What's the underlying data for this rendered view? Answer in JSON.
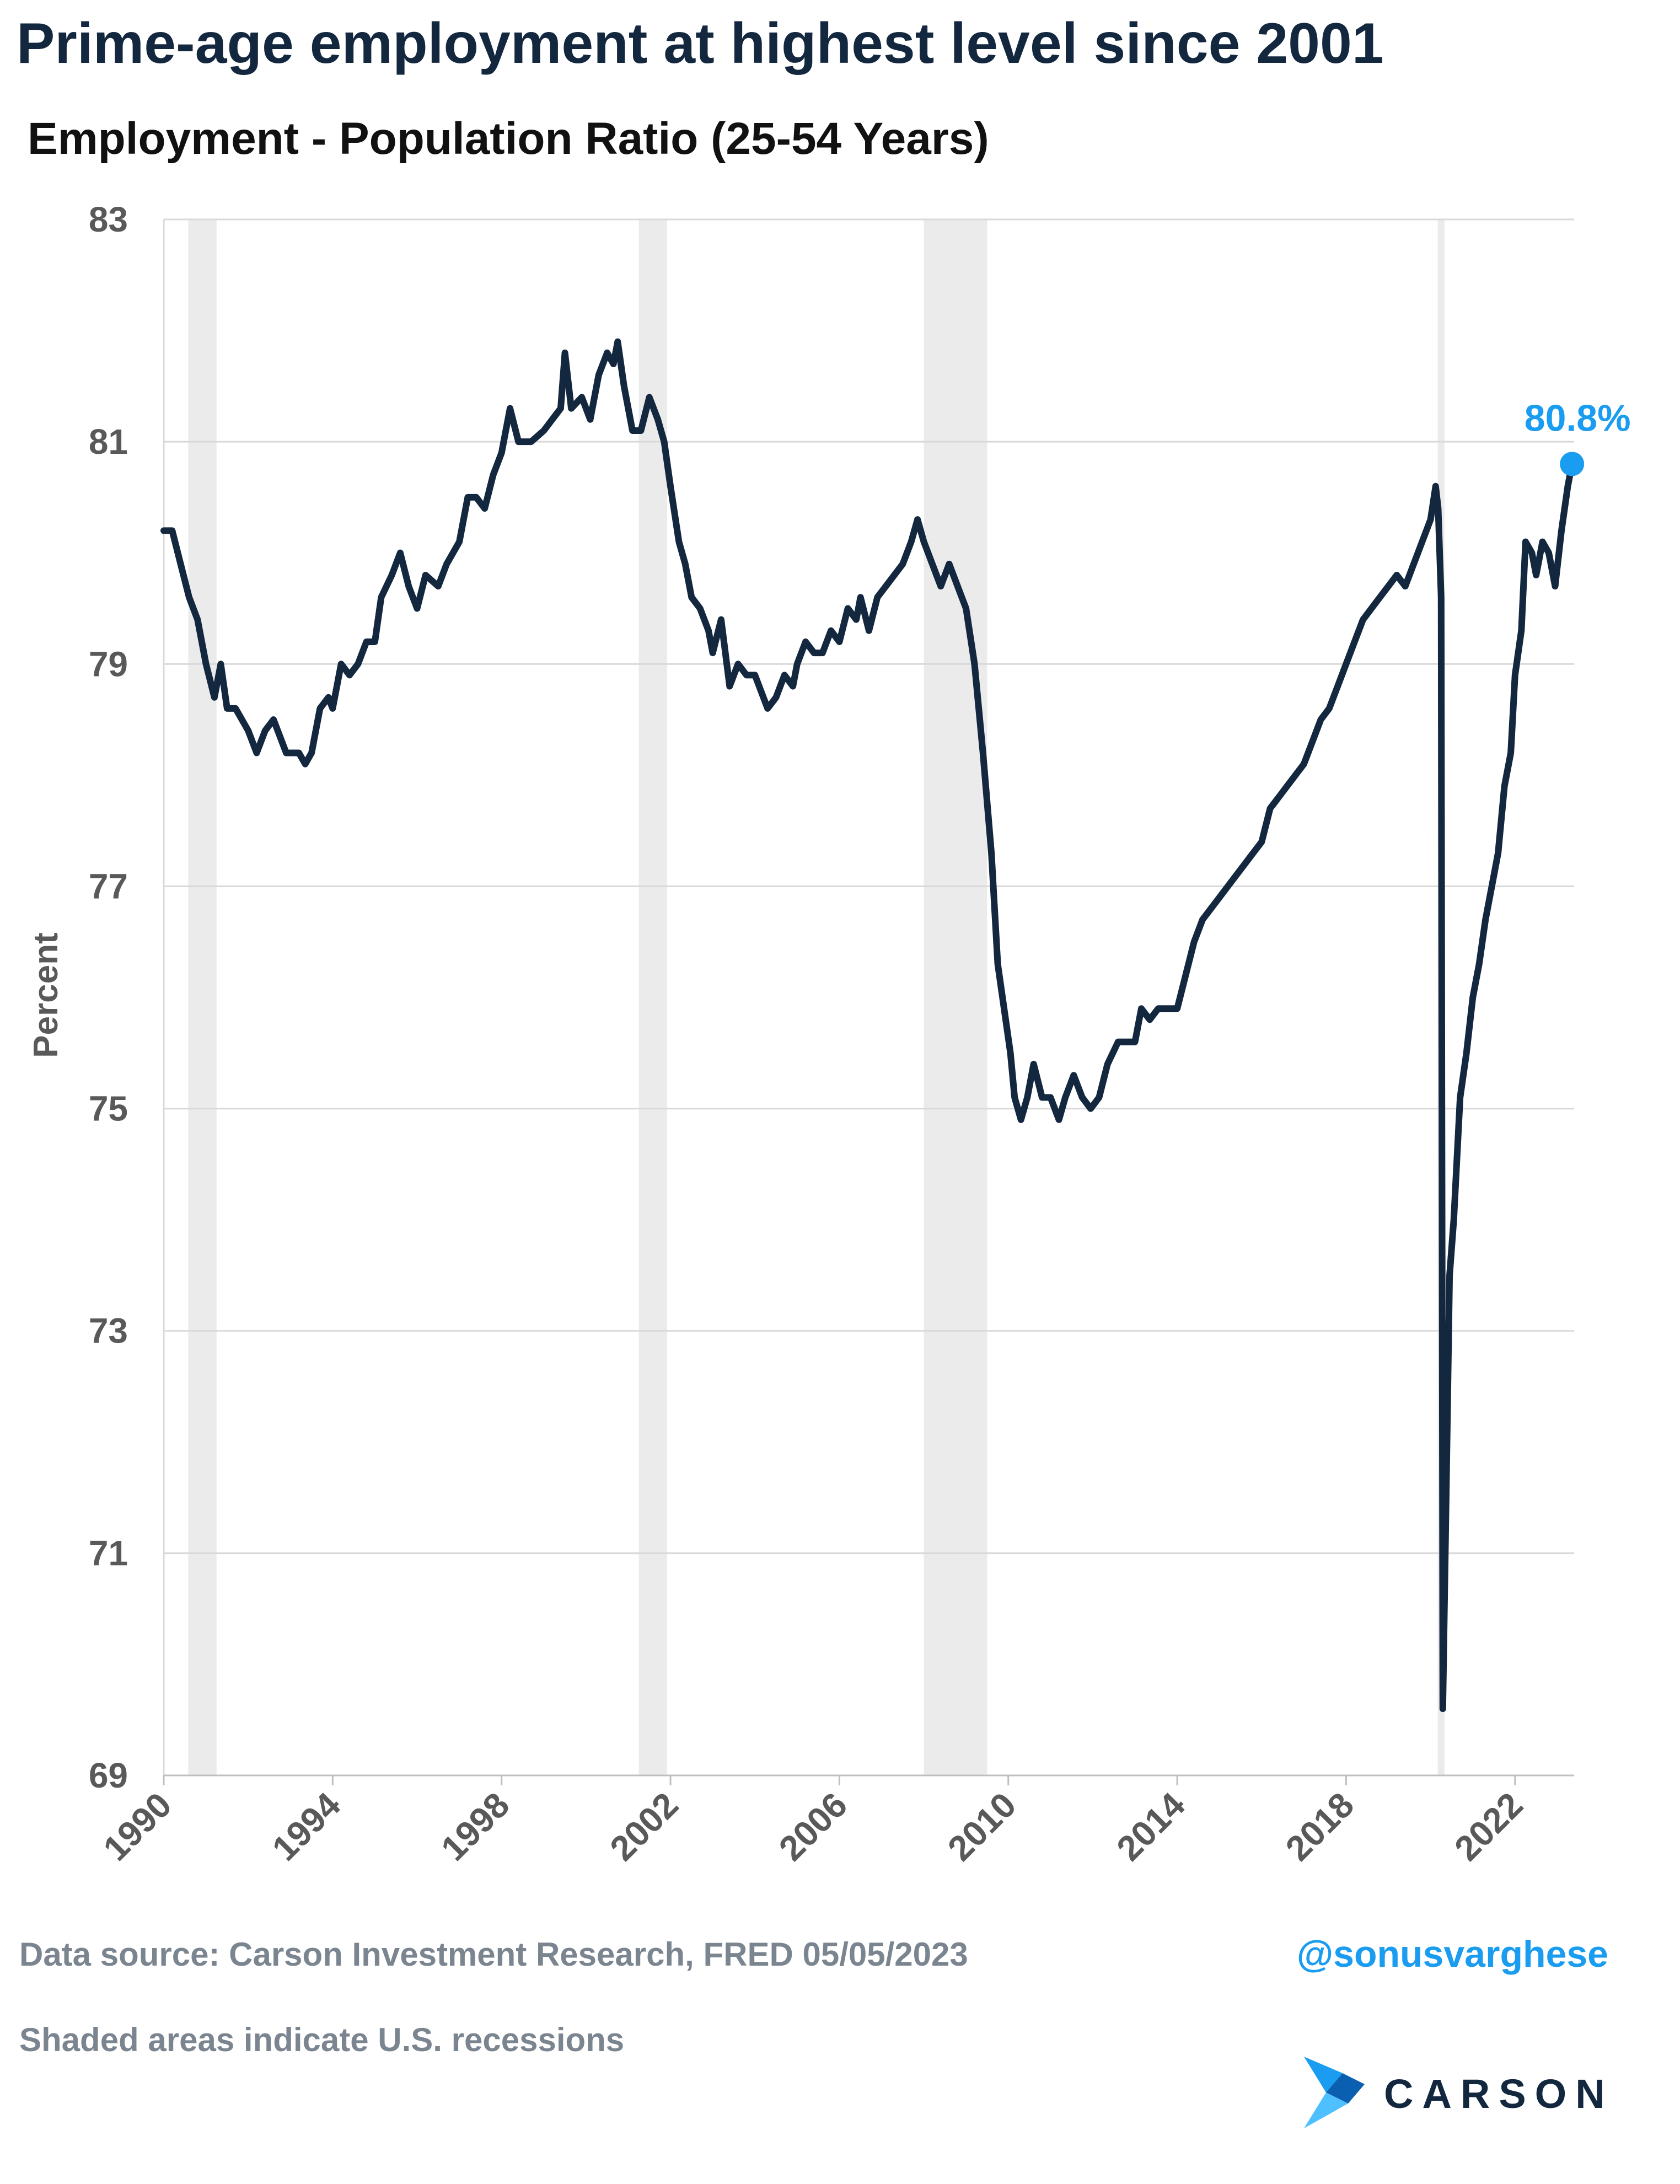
{
  "title": "Prime-age employment at highest level since 2001",
  "subtitle": "Employment - Population Ratio (25-54 Years)",
  "footer": {
    "source": "Data source: Carson Investment Research, FRED   05/05/2023",
    "note": "Shaded areas indicate U.S. recessions",
    "handle": "@sonusvarghese",
    "logo_text": "CARSON"
  },
  "colors": {
    "line": "#13273f",
    "highlight": "#1a9cf0",
    "recession": "#ebebeb",
    "grid": "#d9d9d9",
    "tick_text": "#595959"
  },
  "chart_data": {
    "type": "line",
    "title": "Employment - Population Ratio (25-54 Years)",
    "ylabel": "Percent",
    "xlabel": "",
    "xlim": [
      1990,
      2023.4
    ],
    "ylim": [
      69,
      83
    ],
    "y_ticks": [
      69,
      71,
      73,
      75,
      77,
      79,
      81,
      83
    ],
    "x_ticks": [
      1990,
      1994,
      1998,
      2002,
      2006,
      2010,
      2014,
      2018,
      2022
    ],
    "grid": "horizontal",
    "recessions": [
      [
        1990.58,
        1991.25
      ],
      [
        2001.25,
        2001.92
      ],
      [
        2008.0,
        2009.5
      ],
      [
        2020.17,
        2020.33
      ]
    ],
    "series": [
      {
        "values": [
          [
            1990.0,
            80.2
          ],
          [
            1990.2,
            80.2
          ],
          [
            1990.4,
            79.9
          ],
          [
            1990.6,
            79.6
          ],
          [
            1990.8,
            79.4
          ],
          [
            1991.0,
            79.0
          ],
          [
            1991.2,
            78.7
          ],
          [
            1991.35,
            79.0
          ],
          [
            1991.5,
            78.6
          ],
          [
            1991.7,
            78.6
          ],
          [
            1992.0,
            78.4
          ],
          [
            1992.2,
            78.2
          ],
          [
            1992.4,
            78.4
          ],
          [
            1992.6,
            78.5
          ],
          [
            1992.9,
            78.2
          ],
          [
            1993.2,
            78.2
          ],
          [
            1993.35,
            78.1
          ],
          [
            1993.5,
            78.2
          ],
          [
            1993.7,
            78.6
          ],
          [
            1993.9,
            78.7
          ],
          [
            1994.0,
            78.6
          ],
          [
            1994.2,
            79.0
          ],
          [
            1994.4,
            78.9
          ],
          [
            1994.6,
            79.0
          ],
          [
            1994.8,
            79.2
          ],
          [
            1995.0,
            79.2
          ],
          [
            1995.15,
            79.6
          ],
          [
            1995.4,
            79.8
          ],
          [
            1995.6,
            80.0
          ],
          [
            1995.8,
            79.7
          ],
          [
            1996.0,
            79.5
          ],
          [
            1996.2,
            79.8
          ],
          [
            1996.5,
            79.7
          ],
          [
            1996.7,
            79.9
          ],
          [
            1997.0,
            80.1
          ],
          [
            1997.2,
            80.5
          ],
          [
            1997.4,
            80.5
          ],
          [
            1997.6,
            80.4
          ],
          [
            1997.8,
            80.7
          ],
          [
            1998.0,
            80.9
          ],
          [
            1998.2,
            81.3
          ],
          [
            1998.4,
            81.0
          ],
          [
            1998.7,
            81.0
          ],
          [
            1999.0,
            81.1
          ],
          [
            1999.2,
            81.2
          ],
          [
            1999.4,
            81.3
          ],
          [
            1999.5,
            81.8
          ],
          [
            1999.65,
            81.3
          ],
          [
            1999.9,
            81.4
          ],
          [
            2000.1,
            81.2
          ],
          [
            2000.3,
            81.6
          ],
          [
            2000.5,
            81.8
          ],
          [
            2000.65,
            81.7
          ],
          [
            2000.75,
            81.9
          ],
          [
            2000.9,
            81.5
          ],
          [
            2001.1,
            81.1
          ],
          [
            2001.3,
            81.1
          ],
          [
            2001.5,
            81.4
          ],
          [
            2001.7,
            81.2
          ],
          [
            2001.85,
            81.0
          ],
          [
            2002.0,
            80.6
          ],
          [
            2002.2,
            80.1
          ],
          [
            2002.35,
            79.9
          ],
          [
            2002.5,
            79.6
          ],
          [
            2002.7,
            79.5
          ],
          [
            2002.9,
            79.3
          ],
          [
            2003.0,
            79.1
          ],
          [
            2003.2,
            79.4
          ],
          [
            2003.4,
            78.8
          ],
          [
            2003.6,
            79.0
          ],
          [
            2003.8,
            78.9
          ],
          [
            2004.0,
            78.9
          ],
          [
            2004.3,
            78.6
          ],
          [
            2004.5,
            78.7
          ],
          [
            2004.7,
            78.9
          ],
          [
            2004.9,
            78.8
          ],
          [
            2005.0,
            79.0
          ],
          [
            2005.2,
            79.2
          ],
          [
            2005.4,
            79.1
          ],
          [
            2005.6,
            79.1
          ],
          [
            2005.8,
            79.3
          ],
          [
            2006.0,
            79.2
          ],
          [
            2006.2,
            79.5
          ],
          [
            2006.4,
            79.4
          ],
          [
            2006.5,
            79.6
          ],
          [
            2006.7,
            79.3
          ],
          [
            2006.9,
            79.6
          ],
          [
            2007.1,
            79.7
          ],
          [
            2007.3,
            79.8
          ],
          [
            2007.5,
            79.9
          ],
          [
            2007.7,
            80.1
          ],
          [
            2007.85,
            80.3
          ],
          [
            2008.0,
            80.1
          ],
          [
            2008.2,
            79.9
          ],
          [
            2008.4,
            79.7
          ],
          [
            2008.6,
            79.9
          ],
          [
            2008.8,
            79.7
          ],
          [
            2009.0,
            79.5
          ],
          [
            2009.2,
            79.0
          ],
          [
            2009.4,
            78.2
          ],
          [
            2009.6,
            77.3
          ],
          [
            2009.75,
            76.3
          ],
          [
            2009.9,
            75.9
          ],
          [
            2010.05,
            75.5
          ],
          [
            2010.15,
            75.1
          ],
          [
            2010.3,
            74.9
          ],
          [
            2010.45,
            75.1
          ],
          [
            2010.6,
            75.4
          ],
          [
            2010.8,
            75.1
          ],
          [
            2011.0,
            75.1
          ],
          [
            2011.2,
            74.9
          ],
          [
            2011.35,
            75.1
          ],
          [
            2011.55,
            75.3
          ],
          [
            2011.75,
            75.1
          ],
          [
            2011.95,
            75.0
          ],
          [
            2012.15,
            75.1
          ],
          [
            2012.35,
            75.4
          ],
          [
            2012.6,
            75.6
          ],
          [
            2012.8,
            75.6
          ],
          [
            2013.0,
            75.6
          ],
          [
            2013.15,
            75.9
          ],
          [
            2013.35,
            75.8
          ],
          [
            2013.55,
            75.9
          ],
          [
            2013.8,
            75.9
          ],
          [
            2014.0,
            75.9
          ],
          [
            2014.2,
            76.2
          ],
          [
            2014.4,
            76.5
          ],
          [
            2014.6,
            76.7
          ],
          [
            2014.8,
            76.8
          ],
          [
            2015.0,
            76.9
          ],
          [
            2015.2,
            77.0
          ],
          [
            2015.4,
            77.1
          ],
          [
            2015.6,
            77.2
          ],
          [
            2015.8,
            77.3
          ],
          [
            2016.0,
            77.4
          ],
          [
            2016.2,
            77.7
          ],
          [
            2016.4,
            77.8
          ],
          [
            2016.6,
            77.9
          ],
          [
            2016.8,
            78.0
          ],
          [
            2017.0,
            78.1
          ],
          [
            2017.2,
            78.3
          ],
          [
            2017.4,
            78.5
          ],
          [
            2017.6,
            78.6
          ],
          [
            2017.8,
            78.8
          ],
          [
            2018.0,
            79.0
          ],
          [
            2018.2,
            79.2
          ],
          [
            2018.4,
            79.4
          ],
          [
            2018.6,
            79.5
          ],
          [
            2018.8,
            79.6
          ],
          [
            2019.0,
            79.7
          ],
          [
            2019.2,
            79.8
          ],
          [
            2019.4,
            79.7
          ],
          [
            2019.6,
            79.9
          ],
          [
            2019.8,
            80.1
          ],
          [
            2020.0,
            80.3
          ],
          [
            2020.12,
            80.6
          ],
          [
            2020.18,
            80.4
          ],
          [
            2020.25,
            79.6
          ],
          [
            2020.29,
            69.6
          ],
          [
            2020.37,
            71.5
          ],
          [
            2020.45,
            73.5
          ],
          [
            2020.55,
            74.0
          ],
          [
            2020.7,
            75.1
          ],
          [
            2020.85,
            75.5
          ],
          [
            2021.0,
            76.0
          ],
          [
            2021.15,
            76.3
          ],
          [
            2021.3,
            76.7
          ],
          [
            2021.45,
            77.0
          ],
          [
            2021.6,
            77.3
          ],
          [
            2021.75,
            77.9
          ],
          [
            2021.9,
            78.2
          ],
          [
            2022.0,
            78.9
          ],
          [
            2022.15,
            79.3
          ],
          [
            2022.25,
            80.1
          ],
          [
            2022.4,
            80.0
          ],
          [
            2022.5,
            79.8
          ],
          [
            2022.65,
            80.1
          ],
          [
            2022.8,
            80.0
          ],
          [
            2022.95,
            79.7
          ],
          [
            2023.1,
            80.2
          ],
          [
            2023.25,
            80.6
          ],
          [
            2023.35,
            80.8
          ]
        ]
      }
    ],
    "last_point": {
      "x": 2023.35,
      "y": 80.8,
      "label": "80.8%"
    }
  }
}
